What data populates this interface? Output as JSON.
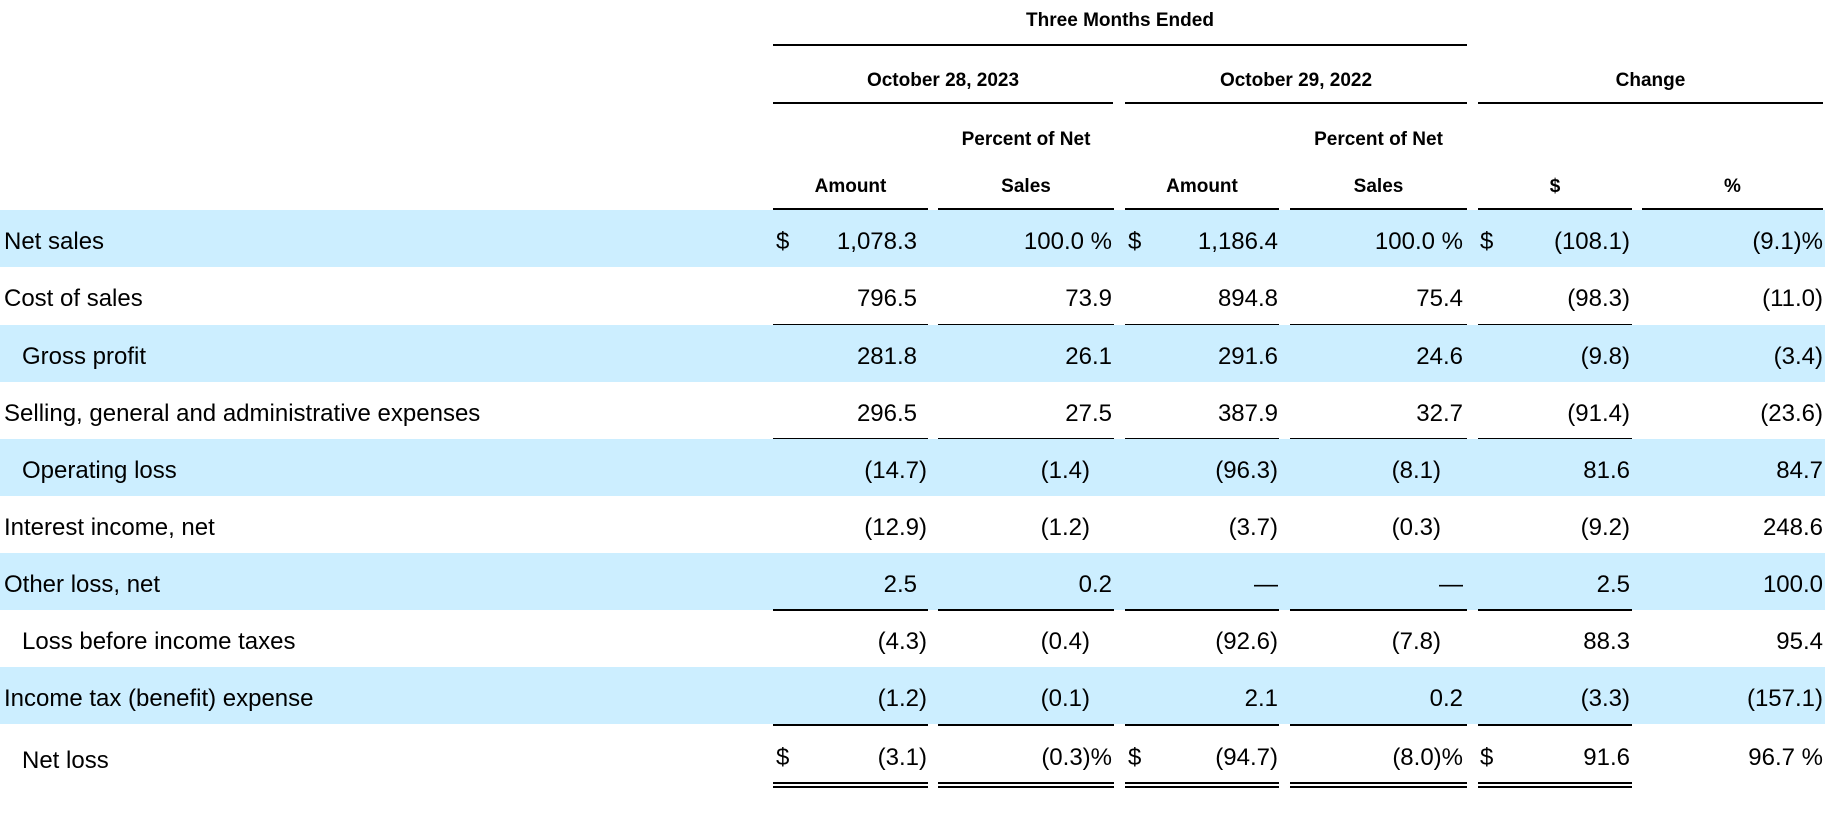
{
  "header": {
    "period": "Three Months Ended",
    "col_2023": "October 28, 2023",
    "col_2022": "October 29, 2022",
    "col_change": "Change",
    "pct_net_line1": "Percent of Net",
    "pct_net_line2": "Sales",
    "amount": "Amount",
    "dollar": "$",
    "percent": "%"
  },
  "rows": [
    {
      "label": "Net sales",
      "a2023": "1,078.3",
      "p2023": "100.0 %",
      "a2022": "1,186.4",
      "p2022": "100.0 %",
      "chg_d": "(108.1)",
      "chg_p": "(9.1)%"
    },
    {
      "label": "Cost of sales",
      "a2023": "796.5",
      "p2023": "73.9",
      "a2022": "894.8",
      "p2022": "75.4",
      "chg_d": "(98.3)",
      "chg_p": "(11.0)"
    },
    {
      "label": "Gross profit",
      "a2023": "281.8",
      "p2023": "26.1",
      "a2022": "291.6",
      "p2022": "24.6",
      "chg_d": "(9.8)",
      "chg_p": "(3.4)"
    },
    {
      "label": "Selling, general and administrative expenses",
      "a2023": "296.5",
      "p2023": "27.5",
      "a2022": "387.9",
      "p2022": "32.7",
      "chg_d": "(91.4)",
      "chg_p": "(23.6)"
    },
    {
      "label": "Operating loss",
      "a2023": "(14.7)",
      "p2023": "(1.4)",
      "a2022": "(96.3)",
      "p2022": "(8.1)",
      "chg_d": "81.6",
      "chg_p": "84.7"
    },
    {
      "label": "Interest income, net",
      "a2023": "(12.9)",
      "p2023": "(1.2)",
      "a2022": "(3.7)",
      "p2022": "(0.3)",
      "chg_d": "(9.2)",
      "chg_p": "248.6"
    },
    {
      "label": "Other loss, net",
      "a2023": "2.5",
      "p2023": "0.2",
      "a2022": "—",
      "p2022": "—",
      "chg_d": "2.5",
      "chg_p": "100.0"
    },
    {
      "label": "Loss before income taxes",
      "a2023": "(4.3)",
      "p2023": "(0.4)",
      "a2022": "(92.6)",
      "p2022": "(7.8)",
      "chg_d": "88.3",
      "chg_p": "95.4"
    },
    {
      "label": "Income tax (benefit) expense",
      "a2023": "(1.2)",
      "p2023": "(0.1)",
      "a2022": "2.1",
      "p2022": "0.2",
      "chg_d": "(3.3)",
      "chg_p": "(157.1)"
    },
    {
      "label": "Net loss",
      "a2023": "(3.1)",
      "p2023": "(0.3)%",
      "a2022": "(94.7)",
      "p2022": "(8.0)%",
      "chg_d": "91.6",
      "chg_p": "96.7 %"
    }
  ],
  "currency_symbol": "$",
  "colors": {
    "row_shade": "#cceeff"
  }
}
